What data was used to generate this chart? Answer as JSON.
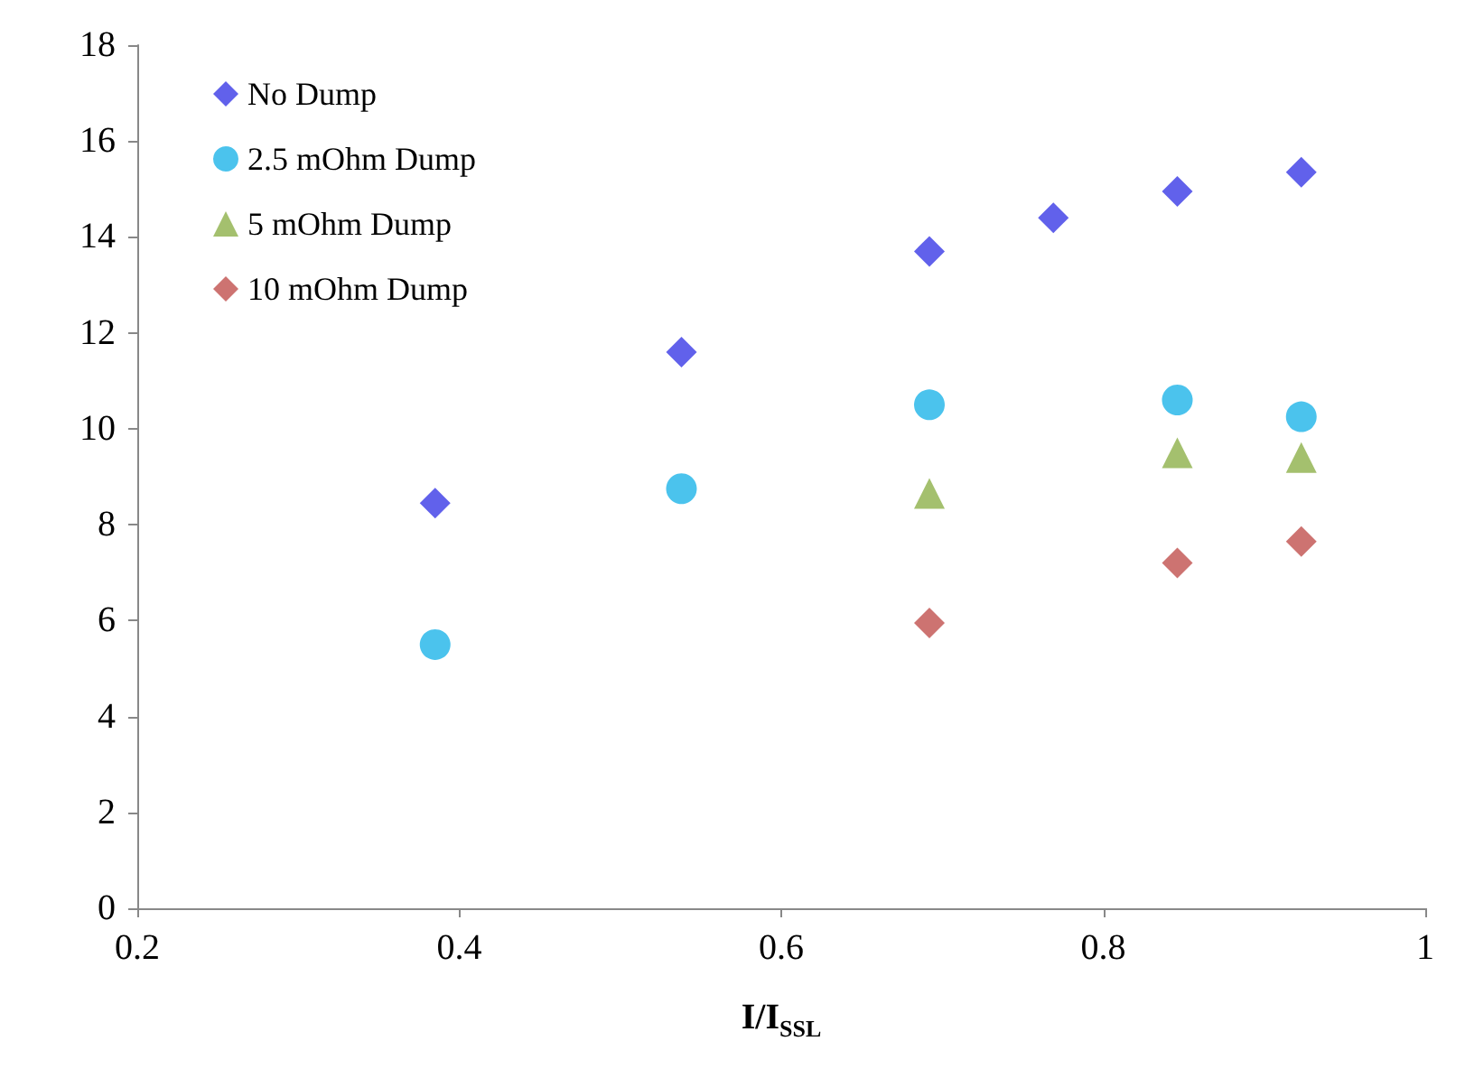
{
  "chart_data": {
    "type": "scatter",
    "xlabel": "I/I$_{SSL}$",
    "series": [
      {
        "name": "No Dump",
        "color": "#3a3ae6",
        "marker": "diamond",
        "x": [
          0.385,
          0.538,
          0.692,
          0.769,
          0.846,
          0.923
        ],
        "values": [
          8.45,
          11.6,
          13.7,
          14.4,
          14.95,
          15.35
        ]
      },
      {
        "name": "2.5 mOhm Dump",
        "color": "#1eb4e8",
        "marker": "circle",
        "x": [
          0.385,
          0.538,
          0.692,
          0.846,
          0.923
        ],
        "values": [
          5.5,
          8.75,
          10.5,
          10.6,
          10.25
        ]
      },
      {
        "name": "5 mOhm Dump",
        "color": "#8db04a",
        "marker": "triangle",
        "x": [
          0.692,
          0.846,
          0.923
        ],
        "values": [
          8.65,
          9.5,
          9.4
        ]
      },
      {
        "name": "10 mOhm Dump",
        "color": "#c0504d",
        "marker": "diamond",
        "x": [
          0.692,
          0.846,
          0.923
        ],
        "values": [
          5.95,
          7.2,
          7.65
        ]
      }
    ],
    "xlim": [
      0.2,
      1
    ],
    "xticks": [
      0.2,
      0.4,
      0.6,
      0.8,
      1
    ],
    "ylim": [
      0,
      18
    ],
    "yticks": [
      0,
      2,
      4,
      6,
      8,
      10,
      12,
      14,
      16,
      18
    ],
    "grid": false,
    "legend": "top left"
  }
}
